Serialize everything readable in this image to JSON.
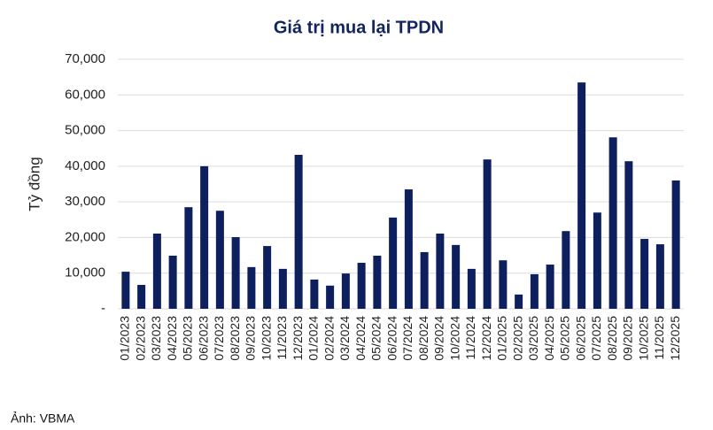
{
  "chart_data": {
    "type": "bar",
    "title": "Giá trị mua lại TPDN",
    "y_label": "Tỷ đồng",
    "categories": [
      "01/2023",
      "02/2023",
      "03/2023",
      "04/2023",
      "05/2023",
      "06/2023",
      "07/2023",
      "08/2023",
      "09/2023",
      "10/2023",
      "11/2023",
      "12/2023",
      "01/2024",
      "02/2024",
      "03/2024",
      "04/2024",
      "05/2024",
      "06/2024",
      "07/2024",
      "08/2024",
      "09/2024",
      "10/2024",
      "11/2024",
      "12/2024",
      "01/2025",
      "02/2025",
      "03/2025",
      "04/2025",
      "05/2025",
      "06/2025",
      "07/2025",
      "08/2025",
      "09/2025",
      "10/2025",
      "11/2025",
      "12/2025"
    ],
    "values": [
      10400,
      6700,
      21100,
      14900,
      28500,
      40000,
      27500,
      20100,
      11700,
      17600,
      11200,
      43200,
      8200,
      6500,
      9900,
      12900,
      14900,
      25600,
      33500,
      15900,
      21100,
      17900,
      11200,
      41900,
      13600,
      4000,
      9700,
      12400,
      21800,
      63500,
      27000,
      48100,
      41400,
      19600,
      18100,
      36000
    ],
    "color": "#0d1f5c",
    "ylim": [
      0,
      70000
    ],
    "yticks": [
      {
        "value": 0,
        "label": "-"
      },
      {
        "value": 10000,
        "label": "10,000"
      },
      {
        "value": 20000,
        "label": "20,000"
      },
      {
        "value": 30000,
        "label": "30,000"
      },
      {
        "value": 40000,
        "label": "40,000"
      },
      {
        "value": 50000,
        "label": "50,000"
      },
      {
        "value": 60000,
        "label": "60,000"
      },
      {
        "value": 70000,
        "label": "70,000"
      }
    ],
    "grid": true
  },
  "caption": "Ảnh: VBMA"
}
